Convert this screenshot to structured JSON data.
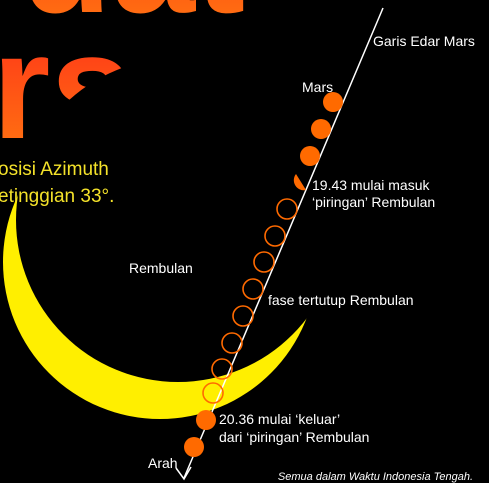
{
  "title": {
    "top_fragment": "uat",
    "big": "rs",
    "subtitle_line1": "osisi Azimuth",
    "subtitle_line2": "etinggian 33°."
  },
  "labels": {
    "orbit": "Garis Edar Mars",
    "mars": "Mars",
    "enter_line1": "19.43 mulai masuk",
    "enter_line2": "‘piringan’ Rembulan",
    "moon": "Rembulan",
    "covered": "fase tertutup Rembulan",
    "exit_line1": "20.36 mulai ‘keluar’",
    "exit_line2": "dari ‘piringan’ Rembulan",
    "direction": "Arah",
    "footnote": "Semua dalam Waktu Indonesia Tengah."
  }
}
